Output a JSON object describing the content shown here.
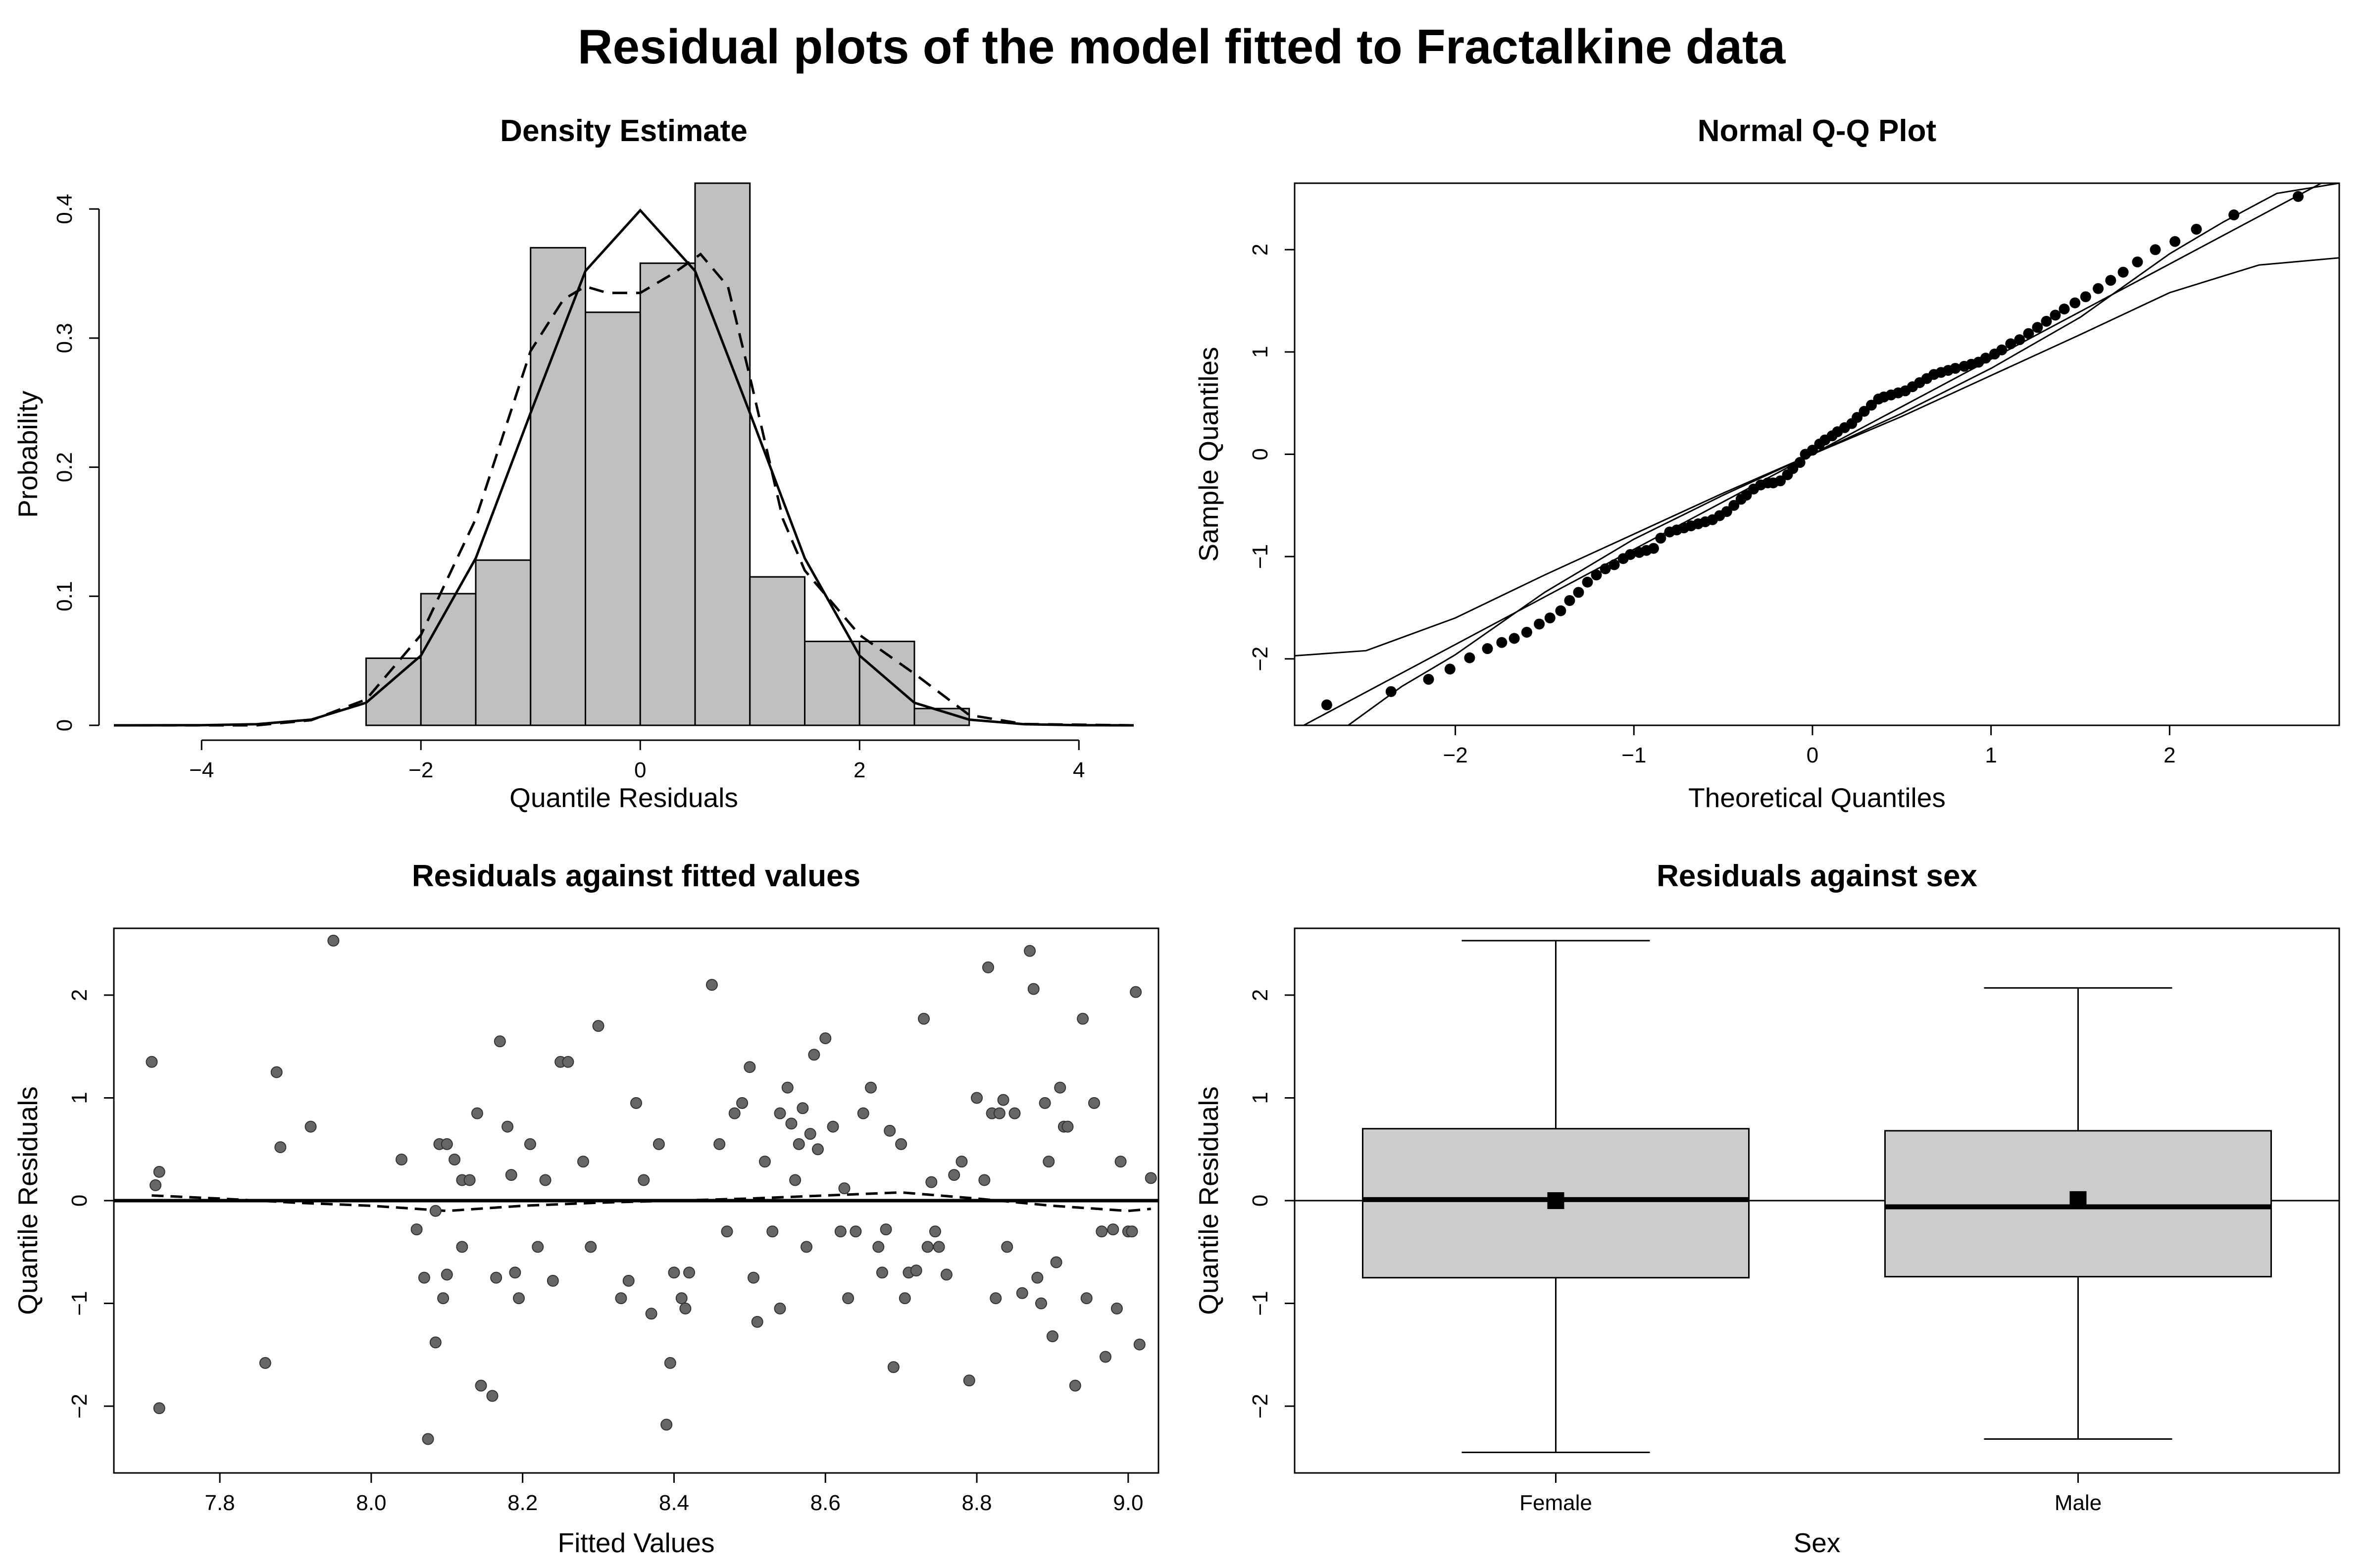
{
  "figure_title": "Residual plots of the model fitted to Fractalkine data",
  "colors": {
    "bar_fill": "#c0c0c0",
    "box_fill": "#cccccc",
    "point": "#666666",
    "ink": "#000000"
  },
  "chart_data": [
    {
      "type": "histogram",
      "title": "Density Estimate",
      "xlabel": "Quantile Residuals",
      "ylabel": "Probability",
      "xlim": [
        -4.8,
        4.5
      ],
      "ylim": [
        0,
        0.42
      ],
      "xticks": [
        -4,
        -2,
        0,
        2,
        4
      ],
      "yticks": [
        0.0,
        0.1,
        0.2,
        0.3,
        0.4
      ],
      "bin_edges": [
        -2.5,
        -2.0,
        -1.5,
        -1.0,
        -0.5,
        0.0,
        0.5,
        1.0,
        1.5,
        2.0,
        2.5,
        3.0
      ],
      "bin_heights": [
        0.052,
        0.102,
        0.128,
        0.37,
        0.32,
        0.358,
        0.42,
        0.115,
        0.065,
        0.065,
        0.013
      ],
      "series": [
        {
          "name": "normal density",
          "style": "solid",
          "x": [
            -4.8,
            -4.0,
            -3.5,
            -3.0,
            -2.5,
            -2.0,
            -1.5,
            -1.0,
            -0.5,
            0.0,
            0.5,
            1.0,
            1.5,
            2.0,
            2.5,
            3.0,
            3.5,
            4.0,
            4.5
          ],
          "y": [
            0.0,
            0.0001,
            0.0009,
            0.0044,
            0.0175,
            0.054,
            0.1295,
            0.242,
            0.352,
            0.399,
            0.352,
            0.242,
            0.1295,
            0.054,
            0.0175,
            0.0044,
            0.0009,
            0.0001,
            0.0
          ]
        },
        {
          "name": "kernel density",
          "style": "dashed",
          "x": [
            -4.8,
            -3.5,
            -3.0,
            -2.5,
            -2.0,
            -1.5,
            -1.0,
            -0.7,
            -0.5,
            -0.3,
            0.0,
            0.3,
            0.55,
            0.8,
            1.0,
            1.3,
            1.5,
            2.0,
            2.5,
            3.0,
            3.5,
            4.5
          ],
          "y": [
            0.0,
            0.0,
            0.004,
            0.02,
            0.07,
            0.16,
            0.29,
            0.33,
            0.34,
            0.335,
            0.335,
            0.35,
            0.365,
            0.34,
            0.27,
            0.16,
            0.12,
            0.07,
            0.04,
            0.008,
            0.001,
            0.0
          ]
        }
      ]
    },
    {
      "type": "scatter",
      "title": "Normal Q-Q Plot",
      "xlabel": "Theoretical Quantiles",
      "ylabel": "Sample Quantiles",
      "xlim": [
        -2.9,
        2.95
      ],
      "ylim": [
        -2.65,
        2.65
      ],
      "xticks": [
        -2,
        -1,
        0,
        1,
        2
      ],
      "yticks": [
        -2,
        -1,
        0,
        1,
        2
      ],
      "theoretical_quantiles": [
        -2.72,
        -2.36,
        -2.15,
        -2.03,
        -1.92,
        -1.82,
        -1.74,
        -1.67,
        -1.6,
        -1.53,
        -1.47,
        -1.41,
        -1.36,
        -1.31,
        -1.26,
        -1.21,
        -1.16,
        -1.11,
        -1.06,
        -1.02,
        -0.97,
        -0.93,
        -0.89,
        -0.85,
        -0.8,
        -0.76,
        -0.72,
        -0.68,
        -0.64,
        -0.6,
        -0.56,
        -0.52,
        -0.48,
        -0.44,
        -0.4,
        -0.37,
        -0.33,
        -0.29,
        -0.25,
        -0.22,
        -0.18,
        -0.14,
        -0.11,
        -0.07,
        -0.04,
        0.0,
        0.04,
        0.07,
        0.11,
        0.14,
        0.18,
        0.22,
        0.25,
        0.29,
        0.33,
        0.37,
        0.4,
        0.44,
        0.48,
        0.52,
        0.56,
        0.6,
        0.64,
        0.68,
        0.72,
        0.76,
        0.8,
        0.85,
        0.89,
        0.93,
        0.97,
        1.02,
        1.06,
        1.11,
        1.16,
        1.21,
        1.26,
        1.31,
        1.36,
        1.41,
        1.47,
        1.53,
        1.6,
        1.67,
        1.74,
        1.82,
        1.92,
        2.03,
        2.15,
        2.36,
        2.72
      ],
      "sample_quantiles": [
        -2.45,
        -2.32,
        -2.2,
        -2.1,
        -1.99,
        -1.9,
        -1.84,
        -1.8,
        -1.74,
        -1.66,
        -1.6,
        -1.53,
        -1.43,
        -1.35,
        -1.25,
        -1.18,
        -1.12,
        -1.08,
        -1.02,
        -0.98,
        -0.96,
        -0.94,
        -0.92,
        -0.82,
        -0.76,
        -0.74,
        -0.72,
        -0.7,
        -0.68,
        -0.66,
        -0.64,
        -0.6,
        -0.56,
        -0.5,
        -0.44,
        -0.4,
        -0.34,
        -0.3,
        -0.28,
        -0.28,
        -0.26,
        -0.2,
        -0.14,
        -0.08,
        0.0,
        0.04,
        0.1,
        0.14,
        0.18,
        0.22,
        0.26,
        0.3,
        0.36,
        0.42,
        0.48,
        0.54,
        0.56,
        0.58,
        0.6,
        0.62,
        0.66,
        0.7,
        0.74,
        0.78,
        0.8,
        0.82,
        0.84,
        0.86,
        0.88,
        0.9,
        0.94,
        0.98,
        1.02,
        1.08,
        1.12,
        1.18,
        1.24,
        1.3,
        1.36,
        1.42,
        1.48,
        1.54,
        1.62,
        1.7,
        1.78,
        1.88,
        2.0,
        2.08,
        2.2,
        2.34,
        2.52
      ],
      "reference_line": {
        "intercept": 0.0,
        "slope": 0.93
      },
      "envelope_upper": {
        "x": [
          -2.9,
          -2.5,
          -2.0,
          -1.5,
          -1.0,
          -0.5,
          0.0,
          0.5,
          1.0,
          1.5,
          2.0,
          2.3,
          2.6,
          2.95
        ],
        "y": [
          -1.97,
          -1.92,
          -1.6,
          -1.18,
          -0.78,
          -0.38,
          0.0,
          0.4,
          0.84,
          1.34,
          1.96,
          2.27,
          2.55,
          2.65
        ]
      },
      "envelope_lower": {
        "x": [
          -2.9,
          -2.6,
          -2.3,
          -2.0,
          -1.5,
          -1.0,
          -0.5,
          0.0,
          0.5,
          1.0,
          1.5,
          2.0,
          2.5,
          2.95
        ],
        "y": [
          -2.65,
          -2.65,
          -2.27,
          -1.96,
          -1.35,
          -0.83,
          -0.4,
          0.0,
          0.37,
          0.77,
          1.17,
          1.58,
          1.85,
          1.92
        ]
      }
    },
    {
      "type": "scatter",
      "title": "Residuals against fitted values",
      "xlabel": "Fitted Values",
      "ylabel": "Quantile Residuals",
      "xlim": [
        7.66,
        9.04
      ],
      "ylim": [
        -2.65,
        2.65
      ],
      "xticks": [
        7.8,
        8.0,
        8.2,
        8.4,
        8.6,
        8.8,
        9.0
      ],
      "xtick_labels": [
        "7.8",
        "8.0",
        "8.2",
        "8.4",
        "8.6",
        "8.8",
        "9.0"
      ],
      "yticks": [
        -2,
        -1,
        0,
        1,
        2
      ],
      "points": [
        [
          7.71,
          1.35
        ],
        [
          7.715,
          0.15
        ],
        [
          7.72,
          0.28
        ],
        [
          7.72,
          -2.02
        ],
        [
          7.86,
          -1.58
        ],
        [
          7.875,
          1.25
        ],
        [
          7.88,
          0.52
        ],
        [
          7.92,
          0.72
        ],
        [
          7.95,
          2.53
        ],
        [
          8.04,
          0.4
        ],
        [
          8.06,
          -0.28
        ],
        [
          8.07,
          -0.75
        ],
        [
          8.075,
          -2.32
        ],
        [
          8.085,
          -1.38
        ],
        [
          8.085,
          -0.1
        ],
        [
          8.09,
          0.55
        ],
        [
          8.095,
          -0.95
        ],
        [
          8.1,
          -0.72
        ],
        [
          8.1,
          0.55
        ],
        [
          8.11,
          0.4
        ],
        [
          8.12,
          0.2
        ],
        [
          8.12,
          -0.45
        ],
        [
          8.13,
          0.2
        ],
        [
          8.14,
          0.85
        ],
        [
          8.145,
          -1.8
        ],
        [
          8.16,
          -1.9
        ],
        [
          8.165,
          -0.75
        ],
        [
          8.17,
          1.55
        ],
        [
          8.18,
          0.72
        ],
        [
          8.185,
          0.25
        ],
        [
          8.19,
          -0.7
        ],
        [
          8.195,
          -0.95
        ],
        [
          8.21,
          0.55
        ],
        [
          8.22,
          -0.45
        ],
        [
          8.23,
          0.2
        ],
        [
          8.24,
          -0.78
        ],
        [
          8.25,
          1.35
        ],
        [
          8.26,
          1.35
        ],
        [
          8.28,
          0.38
        ],
        [
          8.29,
          -0.45
        ],
        [
          8.3,
          1.7
        ],
        [
          8.33,
          -0.95
        ],
        [
          8.34,
          -0.78
        ],
        [
          8.35,
          0.95
        ],
        [
          8.36,
          0.2
        ],
        [
          8.37,
          -1.1
        ],
        [
          8.38,
          0.55
        ],
        [
          8.39,
          -2.18
        ],
        [
          8.395,
          -1.58
        ],
        [
          8.4,
          -0.7
        ],
        [
          8.41,
          -0.95
        ],
        [
          8.415,
          -1.05
        ],
        [
          8.42,
          -0.7
        ],
        [
          8.45,
          2.1
        ],
        [
          8.46,
          0.55
        ],
        [
          8.47,
          -0.3
        ],
        [
          8.48,
          0.85
        ],
        [
          8.49,
          0.95
        ],
        [
          8.5,
          1.3
        ],
        [
          8.505,
          -0.75
        ],
        [
          8.51,
          -1.18
        ],
        [
          8.52,
          0.38
        ],
        [
          8.53,
          -0.3
        ],
        [
          8.54,
          -1.05
        ],
        [
          8.54,
          0.85
        ],
        [
          8.55,
          1.1
        ],
        [
          8.555,
          0.75
        ],
        [
          8.56,
          0.2
        ],
        [
          8.565,
          0.55
        ],
        [
          8.57,
          0.9
        ],
        [
          8.575,
          -0.45
        ],
        [
          8.58,
          0.65
        ],
        [
          8.585,
          1.42
        ],
        [
          8.59,
          0.5
        ],
        [
          8.6,
          1.58
        ],
        [
          8.61,
          0.72
        ],
        [
          8.62,
          -0.3
        ],
        [
          8.625,
          0.12
        ],
        [
          8.63,
          -0.95
        ],
        [
          8.64,
          -0.3
        ],
        [
          8.65,
          0.85
        ],
        [
          8.66,
          1.1
        ],
        [
          8.67,
          -0.45
        ],
        [
          8.675,
          -0.7
        ],
        [
          8.68,
          -0.28
        ],
        [
          8.685,
          0.68
        ],
        [
          8.69,
          -1.62
        ],
        [
          8.7,
          0.55
        ],
        [
          8.705,
          -0.95
        ],
        [
          8.71,
          -0.7
        ],
        [
          8.72,
          -0.68
        ],
        [
          8.73,
          1.77
        ],
        [
          8.735,
          -0.45
        ],
        [
          8.74,
          0.18
        ],
        [
          8.745,
          -0.3
        ],
        [
          8.75,
          -0.45
        ],
        [
          8.76,
          -0.72
        ],
        [
          8.77,
          0.25
        ],
        [
          8.78,
          0.38
        ],
        [
          8.79,
          -1.75
        ],
        [
          8.8,
          1.0
        ],
        [
          8.81,
          0.2
        ],
        [
          8.815,
          2.27
        ],
        [
          8.82,
          0.85
        ],
        [
          8.825,
          -0.95
        ],
        [
          8.83,
          0.85
        ],
        [
          8.835,
          0.98
        ],
        [
          8.84,
          -0.45
        ],
        [
          8.85,
          0.85
        ],
        [
          8.86,
          -0.9
        ],
        [
          8.87,
          2.43
        ],
        [
          8.875,
          2.06
        ],
        [
          8.88,
          -0.75
        ],
        [
          8.885,
          -1.0
        ],
        [
          8.89,
          0.95
        ],
        [
          8.895,
          0.38
        ],
        [
          8.9,
          -1.32
        ],
        [
          8.905,
          -0.6
        ],
        [
          8.91,
          1.1
        ],
        [
          8.915,
          0.72
        ],
        [
          8.92,
          0.72
        ],
        [
          8.93,
          -1.8
        ],
        [
          8.94,
          1.77
        ],
        [
          8.945,
          -0.95
        ],
        [
          8.955,
          0.95
        ],
        [
          8.965,
          -0.3
        ],
        [
          8.97,
          -1.52
        ],
        [
          8.98,
          -0.28
        ],
        [
          8.985,
          -1.05
        ],
        [
          8.99,
          0.38
        ],
        [
          9.0,
          -0.3
        ],
        [
          9.005,
          -0.3
        ],
        [
          9.01,
          2.03
        ],
        [
          9.015,
          -1.4
        ],
        [
          9.03,
          0.22
        ]
      ],
      "reference_line": {
        "y": 0
      },
      "smooth_line": {
        "x": [
          7.71,
          7.8,
          7.9,
          8.0,
          8.1,
          8.2,
          8.3,
          8.4,
          8.5,
          8.6,
          8.7,
          8.8,
          8.9,
          9.0,
          9.03
        ],
        "y": [
          0.05,
          0.02,
          -0.02,
          -0.05,
          -0.1,
          -0.05,
          -0.02,
          0.0,
          0.02,
          0.05,
          0.08,
          0.02,
          -0.05,
          -0.1,
          -0.08
        ]
      }
    },
    {
      "type": "box",
      "title": "Residuals against sex",
      "xlabel": "Sex",
      "ylabel": "Quantile Residuals",
      "ylim": [
        -2.65,
        2.65
      ],
      "yticks": [
        -2,
        -1,
        0,
        1,
        2
      ],
      "categories": [
        "Female",
        "Male"
      ],
      "boxes": [
        {
          "min": -2.45,
          "q1": -0.75,
          "median": 0.01,
          "q3": 0.7,
          "max": 2.53,
          "mean": 0.0
        },
        {
          "min": -2.32,
          "q1": -0.74,
          "median": -0.06,
          "q3": 0.68,
          "max": 2.07,
          "mean": 0.01
        }
      ],
      "reference_line": {
        "y": 0
      }
    }
  ]
}
